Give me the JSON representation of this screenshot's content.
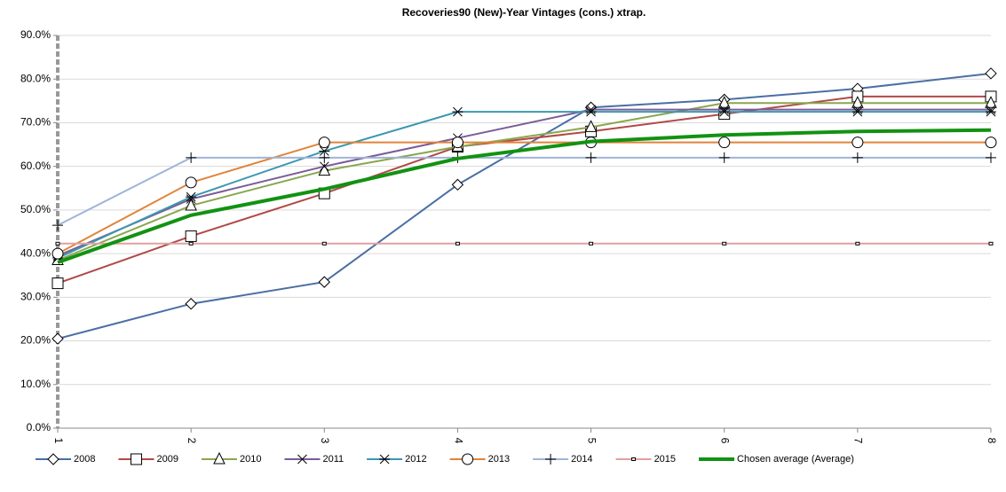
{
  "chart_data": {
    "type": "line",
    "title": "Recoveries90 (New)-Year Vintages (cons.) xtrap.",
    "x": [
      1,
      2,
      3,
      4,
      5,
      6,
      7,
      8
    ],
    "xlim": [
      1,
      8
    ],
    "xticks": [
      1,
      2,
      3,
      4,
      5,
      6,
      7,
      8
    ],
    "ylim": [
      0,
      90
    ],
    "yticks": [
      {
        "value": 0,
        "label": "0.0%"
      },
      {
        "value": 10,
        "label": "10.0%"
      },
      {
        "value": 20,
        "label": "20.0%"
      },
      {
        "value": 30,
        "label": "30.0%"
      },
      {
        "value": 40,
        "label": "40.0%"
      },
      {
        "value": 50,
        "label": "50.0%"
      },
      {
        "value": 60,
        "label": "60.0%"
      },
      {
        "value": 70,
        "label": "70.0%"
      },
      {
        "value": 80,
        "label": "80.0%"
      },
      {
        "value": 90,
        "label": "90.0%"
      }
    ],
    "grid": true,
    "legend": "bottom",
    "series": [
      {
        "name": "2008",
        "color": "#4a6fa5",
        "marker": "diamond",
        "values": [
          20.5,
          28.5,
          33.5,
          55.8,
          73.5,
          75.3,
          77.8,
          81.3
        ]
      },
      {
        "name": "2009",
        "color": "#b04a48",
        "marker": "square",
        "values": [
          33.2,
          44.0,
          53.8,
          64.5,
          68.0,
          72.0,
          76.0,
          76.0
        ]
      },
      {
        "name": "2010",
        "color": "#8aa64e",
        "marker": "triangle",
        "values": [
          38.5,
          51.0,
          59.0,
          64.5,
          69.0,
          74.5,
          74.5,
          74.5
        ]
      },
      {
        "name": "2011",
        "color": "#7a5c98",
        "marker": "x",
        "values": [
          39.5,
          52.5,
          60.0,
          66.5,
          73.0,
          73.0,
          73.0,
          73.0
        ]
      },
      {
        "name": "2012",
        "color": "#3d97b0",
        "marker": "star",
        "values": [
          39.0,
          53.0,
          63.5,
          72.5,
          72.5,
          72.5,
          72.5,
          72.5
        ]
      },
      {
        "name": "2013",
        "color": "#e0843a",
        "marker": "circle",
        "values": [
          40.0,
          56.3,
          65.5,
          65.5,
          65.5,
          65.5,
          65.5,
          65.5
        ]
      },
      {
        "name": "2014",
        "color": "#a0b4d8",
        "marker": "plus",
        "values": [
          46.5,
          62.0,
          62.0,
          62.0,
          62.0,
          62.0,
          62.0,
          62.0
        ]
      },
      {
        "name": "2015",
        "color": "#e0a0a0",
        "marker": "dash",
        "values": [
          42.3,
          42.3,
          42.3,
          42.3,
          42.3,
          42.3,
          42.3,
          42.3
        ]
      },
      {
        "name": "Chosen average (Average)",
        "color": "#129212",
        "marker": "none",
        "width": 4,
        "values": [
          38.0,
          48.8,
          54.8,
          61.8,
          65.7,
          67.2,
          68.0,
          68.3
        ]
      }
    ]
  }
}
